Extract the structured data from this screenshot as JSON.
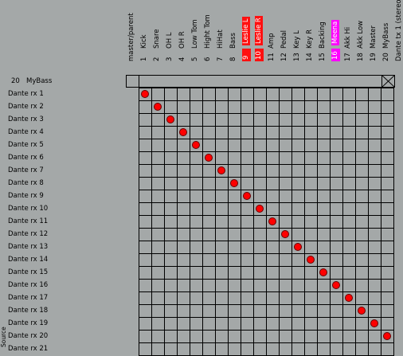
{
  "columns": [
    {
      "num": "",
      "name": "master/parent",
      "style": "plain"
    },
    {
      "num": "1",
      "name": "Kick",
      "style": "plain"
    },
    {
      "num": "2",
      "name": "Snare",
      "style": "plain"
    },
    {
      "num": "3",
      "name": "OH L",
      "style": "plain"
    },
    {
      "num": "4",
      "name": "OH R",
      "style": "plain"
    },
    {
      "num": "5",
      "name": "Low Tom",
      "style": "plain"
    },
    {
      "num": "6",
      "name": "Hight Tom",
      "style": "plain"
    },
    {
      "num": "7",
      "name": "HiHat",
      "style": "plain"
    },
    {
      "num": "8",
      "name": "Bass",
      "style": "plain"
    },
    {
      "num": "9",
      "name": "Leslie L",
      "style": "red"
    },
    {
      "num": "10",
      "name": "Leslie R",
      "style": "red"
    },
    {
      "num": "11",
      "name": "Amp",
      "style": "plain"
    },
    {
      "num": "12",
      "name": "Pedal",
      "style": "plain"
    },
    {
      "num": "13",
      "name": "Key L",
      "style": "plain"
    },
    {
      "num": "14",
      "name": "Key R",
      "style": "plain"
    },
    {
      "num": "15",
      "name": "Backing",
      "style": "plain"
    },
    {
      "num": "16",
      "name": "Meena",
      "style": "magenta"
    },
    {
      "num": "17",
      "name": "Akk Hi",
      "style": "plain"
    },
    {
      "num": "18",
      "name": "Akk Low",
      "style": "plain"
    },
    {
      "num": "19",
      "name": "Master",
      "style": "plain"
    },
    {
      "num": "20",
      "name": "MyBass",
      "style": "plain"
    },
    {
      "num": "",
      "name": "Dante tx 1 (stereo/M",
      "style": "plain"
    }
  ],
  "group": {
    "num": "20",
    "name": "MyBass"
  },
  "rows": [
    "Dante rx 1",
    "Dante rx 2",
    "Dante rx 3",
    "Dante rx 4",
    "Dante rx 5",
    "Dante rx 6",
    "Dante rx 7",
    "Dante rx 8",
    "Dante rx 9",
    "Dante rx 10",
    "Dante rx 11",
    "Dante rx 12",
    "Dante rx 13",
    "Dante rx 14",
    "Dante rx 15",
    "Dante rx 16",
    "Dante rx 17",
    "Dante rx 18",
    "Dante rx 19",
    "Dante rx 20",
    "Dante rx 21"
  ],
  "source_label": "Source",
  "colors": {
    "background": "#a4a8a8",
    "dot": "#ff0000",
    "red_badge": "#ff1010",
    "magenta_badge": "#ff00ff"
  }
}
